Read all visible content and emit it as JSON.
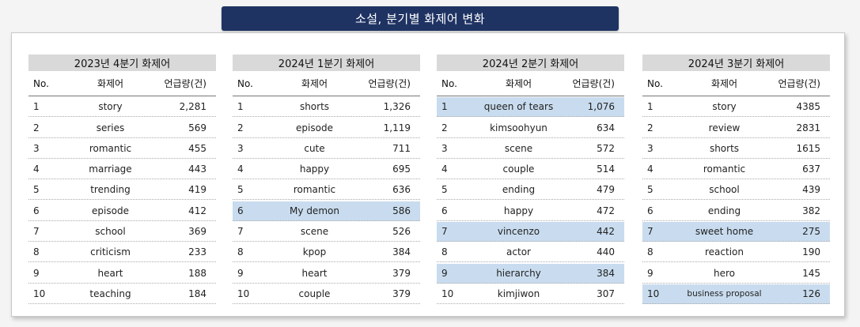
{
  "title": "소설, 분기별 화제어 변화",
  "headers": {
    "no": "No.",
    "word": "화제어",
    "count": "언급량(건)"
  },
  "panels": [
    {
      "title": "2023년 4분기 화제어",
      "rows": [
        {
          "no": "1",
          "word": "story",
          "count": "2,281",
          "highlight": false
        },
        {
          "no": "2",
          "word": "series",
          "count": "569",
          "highlight": false
        },
        {
          "no": "3",
          "word": "romantic",
          "count": "455",
          "highlight": false
        },
        {
          "no": "4",
          "word": "marriage",
          "count": "443",
          "highlight": false
        },
        {
          "no": "5",
          "word": "trending",
          "count": "419",
          "highlight": false
        },
        {
          "no": "6",
          "word": "episode",
          "count": "412",
          "highlight": false
        },
        {
          "no": "7",
          "word": "school",
          "count": "369",
          "highlight": false
        },
        {
          "no": "8",
          "word": "criticism",
          "count": "233",
          "highlight": false
        },
        {
          "no": "9",
          "word": "heart",
          "count": "188",
          "highlight": false
        },
        {
          "no": "10",
          "word": "teaching",
          "count": "184",
          "highlight": false
        }
      ]
    },
    {
      "title": "2024년 1분기 화제어",
      "rows": [
        {
          "no": "1",
          "word": "shorts",
          "count": "1,326",
          "highlight": false
        },
        {
          "no": "2",
          "word": "episode",
          "count": "1,119",
          "highlight": false
        },
        {
          "no": "3",
          "word": "cute",
          "count": "711",
          "highlight": false
        },
        {
          "no": "4",
          "word": "happy",
          "count": "695",
          "highlight": false
        },
        {
          "no": "5",
          "word": "romantic",
          "count": "636",
          "highlight": false
        },
        {
          "no": "6",
          "word": "My demon",
          "count": "586",
          "highlight": true
        },
        {
          "no": "7",
          "word": "scene",
          "count": "526",
          "highlight": false
        },
        {
          "no": "8",
          "word": "kpop",
          "count": "384",
          "highlight": false
        },
        {
          "no": "9",
          "word": "heart",
          "count": "379",
          "highlight": false
        },
        {
          "no": "10",
          "word": "couple",
          "count": "379",
          "highlight": false
        }
      ]
    },
    {
      "title": "2024년 2분기 화제어",
      "rows": [
        {
          "no": "1",
          "word": "queen of tears",
          "count": "1,076",
          "highlight": true
        },
        {
          "no": "2",
          "word": "kimsoohyun",
          "count": "634",
          "highlight": false
        },
        {
          "no": "3",
          "word": "scene",
          "count": "572",
          "highlight": false
        },
        {
          "no": "4",
          "word": "couple",
          "count": "514",
          "highlight": false
        },
        {
          "no": "5",
          "word": "ending",
          "count": "479",
          "highlight": false
        },
        {
          "no": "6",
          "word": "happy",
          "count": "472",
          "highlight": false
        },
        {
          "no": "7",
          "word": "vincenzo",
          "count": "442",
          "highlight": true
        },
        {
          "no": "8",
          "word": "actor",
          "count": "440",
          "highlight": false
        },
        {
          "no": "9",
          "word": "hierarchy",
          "count": "384",
          "highlight": true
        },
        {
          "no": "10",
          "word": "kimjiwon",
          "count": "307",
          "highlight": false
        }
      ]
    },
    {
      "title": "2024년 3분기 화제어",
      "rows": [
        {
          "no": "1",
          "word": "story",
          "count": "4385",
          "highlight": false
        },
        {
          "no": "2",
          "word": "review",
          "count": "2831",
          "highlight": false
        },
        {
          "no": "3",
          "word": "shorts",
          "count": "1615",
          "highlight": false
        },
        {
          "no": "4",
          "word": "romantic",
          "count": "637",
          "highlight": false
        },
        {
          "no": "5",
          "word": "school",
          "count": "439",
          "highlight": false
        },
        {
          "no": "6",
          "word": "ending",
          "count": "382",
          "highlight": false
        },
        {
          "no": "7",
          "word": "sweet home",
          "count": "275",
          "highlight": true
        },
        {
          "no": "8",
          "word": "reaction",
          "count": "190",
          "highlight": false
        },
        {
          "no": "9",
          "word": "hero",
          "count": "145",
          "highlight": false
        },
        {
          "no": "10",
          "word": "business proposal",
          "count": "126",
          "highlight": true
        }
      ]
    }
  ]
}
